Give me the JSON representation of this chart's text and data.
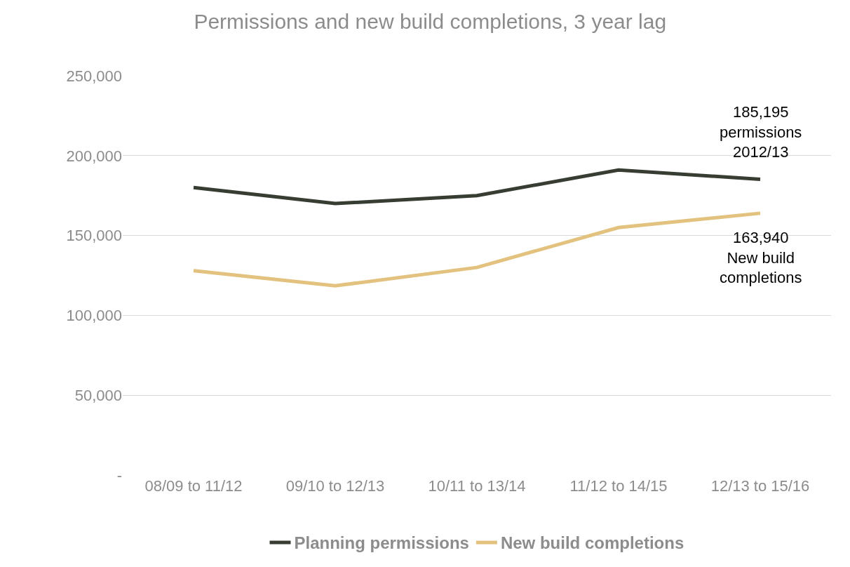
{
  "chart_data": {
    "type": "line",
    "title": "Permissions and new build completions, 3 year lag",
    "categories": [
      "08/09 to 11/12",
      "09/10 to 12/13",
      "10/11 to 13/14",
      "11/12 to 14/15",
      "12/13 to 15/16"
    ],
    "series": [
      {
        "name": "Planning permissions",
        "color": "#383d33",
        "values": [
          180000,
          170000,
          175000,
          191000,
          185195
        ]
      },
      {
        "name": "New build completions",
        "color": "#e2c27e",
        "values": [
          128000,
          118500,
          130000,
          155000,
          163940
        ]
      }
    ],
    "ylim": [
      0,
      250000
    ],
    "yticks": [
      {
        "value": 0,
        "label": "-"
      },
      {
        "value": 50000,
        "label": "50,000"
      },
      {
        "value": 100000,
        "label": "100,000"
      },
      {
        "value": 150000,
        "label": "150,000"
      },
      {
        "value": 200000,
        "label": "200,000"
      },
      {
        "value": 250000,
        "label": "250,000"
      }
    ],
    "annotations": [
      {
        "text": "185,195\npermissions\n2012/13",
        "x": "12/13 to 15/16",
        "y": 185195
      },
      {
        "text": "163,940\nNew build\ncompletions",
        "x": "12/13 to 15/16",
        "y": 163940
      }
    ],
    "grid": "y",
    "legend": "bottom",
    "marker": "none",
    "line_style": "solid"
  }
}
